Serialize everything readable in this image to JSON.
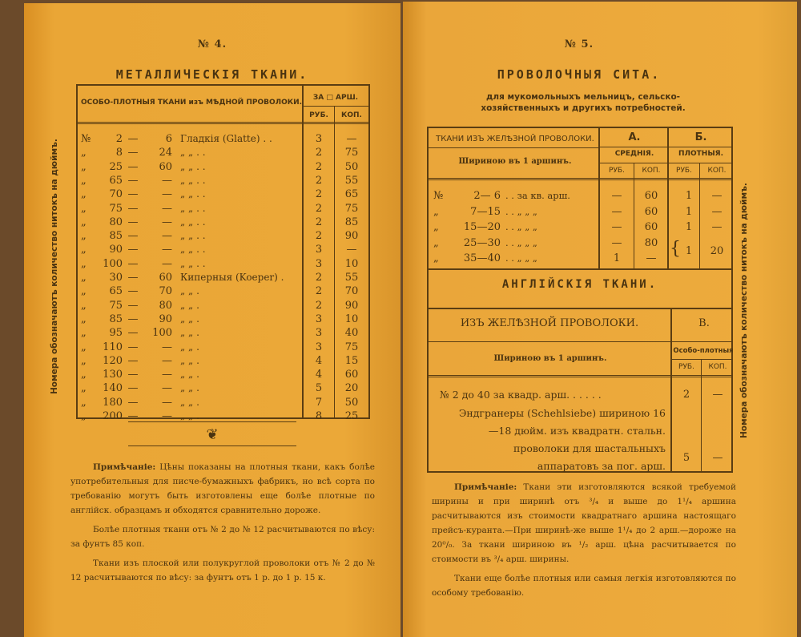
{
  "left_page": {
    "number": "№ 4.",
    "title": "МЕТАЛЛИЧЕСКІЯ ТКАНИ.",
    "side_text": "Номера обозначаютъ количество нитокъ на дюймъ.",
    "table": {
      "header": "ОСОБО-ПЛОТНЫЯ ТКАНИ изъ МѢДНОЙ ПРОВОЛОКИ.",
      "price_header": "ЗА □ АРШ.",
      "col_rub": "РУБ.",
      "col_kop": "КОП.",
      "rows": [
        {
          "mark": "№",
          "from": "2",
          "to": "6",
          "desc": "Гладкія (Glatte) . .",
          "rub": "3",
          "kop": "—"
        },
        {
          "mark": "„",
          "from": "8",
          "to": "24",
          "desc": "„        „     . .",
          "rub": "2",
          "kop": "75"
        },
        {
          "mark": "„",
          "from": "25",
          "to": "60",
          "desc": "„        „     . .",
          "rub": "2",
          "kop": "50"
        },
        {
          "mark": "„",
          "from": "65",
          "to": "—",
          "desc": "„        „     . .",
          "rub": "2",
          "kop": "55"
        },
        {
          "mark": "„",
          "from": "70",
          "to": "—",
          "desc": "„        „     . .",
          "rub": "2",
          "kop": "65"
        },
        {
          "mark": "„",
          "from": "75",
          "to": "—",
          "desc": "„        „     . .",
          "rub": "2",
          "kop": "75"
        },
        {
          "mark": "„",
          "from": "80",
          "to": "—",
          "desc": "„        „     . .",
          "rub": "2",
          "kop": "85"
        },
        {
          "mark": "„",
          "from": "85",
          "to": "—",
          "desc": "„        „     . .",
          "rub": "2",
          "kop": "90"
        },
        {
          "mark": "„",
          "from": "90",
          "to": "—",
          "desc": "„        „     . .",
          "rub": "3",
          "kop": "—"
        },
        {
          "mark": "„",
          "from": "100",
          "to": "—",
          "desc": "„        „     . .",
          "rub": "3",
          "kop": "10"
        },
        {
          "mark": "„",
          "from": "30",
          "to": "60",
          "desc": "Киперныя (Koeper) .",
          "rub": "2",
          "kop": "55"
        },
        {
          "mark": "„",
          "from": "65",
          "to": "70",
          "desc": "„          „     .",
          "rub": "2",
          "kop": "70"
        },
        {
          "mark": "„",
          "from": "75",
          "to": "80",
          "desc": "„          „     .",
          "rub": "2",
          "kop": "90"
        },
        {
          "mark": "„",
          "from": "85",
          "to": "90",
          "desc": "„          „     .",
          "rub": "3",
          "kop": "10"
        },
        {
          "mark": "„",
          "from": "95",
          "to": "100",
          "desc": "„          „     .",
          "rub": "3",
          "kop": "40"
        },
        {
          "mark": "„",
          "from": "110",
          "to": "—",
          "desc": "„          „     .",
          "rub": "3",
          "kop": "75"
        },
        {
          "mark": "„",
          "from": "120",
          "to": "—",
          "desc": "„          „     .",
          "rub": "4",
          "kop": "15"
        },
        {
          "mark": "„",
          "from": "130",
          "to": "—",
          "desc": "„          „     .",
          "rub": "4",
          "kop": "60"
        },
        {
          "mark": "„",
          "from": "140",
          "to": "—",
          "desc": "„          „     .",
          "rub": "5",
          "kop": "20"
        },
        {
          "mark": "„",
          "from": "180",
          "to": "—",
          "desc": "„          „     .",
          "rub": "7",
          "kop": "50"
        },
        {
          "mark": "„",
          "from": "200",
          "to": "—",
          "desc": "„          „     .",
          "rub": "8",
          "kop": "25"
        }
      ]
    },
    "ornament": "❦",
    "notes": [
      {
        "label": "Примѣчаніе:",
        "text": " Цѣны показаны на плотныя ткани, какъ болѣе употребительныя для писче-бумажныхъ фабрикъ, но всѣ сорта по требованію могутъ быть изготовлены еще болѣе плотные по англійск. образцамъ и обходятся сравнительно дороже."
      },
      {
        "label": "",
        "text": "Болѣе плотныя ткани отъ № 2 до № 12 расчитываются по вѣсу: за фунтъ 85 коп."
      },
      {
        "label": "",
        "text": "Ткани изъ плоской или полукруглой проволоки отъ № 2 до № 12 расчитываются по вѣсу: за фунтъ отъ 1 р. до 1 р. 15 к."
      }
    ]
  },
  "right_page": {
    "number": "№ 5.",
    "title": "ПРОВОЛОЧНЫЯ СИТА.",
    "subtitle": "для мукомольныхъ мельницъ, сельско-хозяйственныхъ и другихъ потребностей.",
    "side_text": "Номера обозначаютъ количество нитокъ на дюймъ.",
    "table1": {
      "header": "ТКАНИ ИЗЪ ЖЕЛѢЗНОЙ ПРОВОЛОКИ.",
      "width_label": "Шириною въ 1 аршинъ.",
      "col_a": "А.",
      "col_a_sub": "СРЕДНІЯ.",
      "col_b": "Б.",
      "col_b_sub": "ПЛОТНЫЯ.",
      "rub": "РУБ.",
      "kop": "КОП.",
      "rows": [
        {
          "mark": "№",
          "range": "2— 6",
          "desc": ". . за кв. арш.",
          "a_rub": "—",
          "a_kop": "60",
          "b_rub": "1",
          "b_kop": "—"
        },
        {
          "mark": "„",
          "range": "7—15",
          "desc": ". .  „   „   „",
          "a_rub": "—",
          "a_kop": "60",
          "b_rub": "1",
          "b_kop": "—"
        },
        {
          "mark": "„",
          "range": "15—20",
          "desc": ". .  „   „   „",
          "a_rub": "—",
          "a_kop": "60",
          "b_rub": "1",
          "b_kop": "—"
        },
        {
          "mark": "„",
          "range": "25—30",
          "desc": ". .  „   „   „",
          "a_rub": "—",
          "a_kop": "80",
          "b_rub": "1",
          "b_kop": "20"
        },
        {
          "mark": "„",
          "range": "35—40",
          "desc": ". .  „   „   „",
          "a_rub": "1",
          "a_kop": "—",
          "b_rub": "",
          "b_kop": ""
        }
      ]
    },
    "table2": {
      "title": "АНГЛІЙСКІЯ ТКАНИ.",
      "header": "ИЗЪ ЖЕЛѢЗНОЙ ПРОВОЛОКИ.",
      "col_v": "В.",
      "width_label": "Шириною въ 1 аршинъ.",
      "col_v_sub": "Особо-плотныя",
      "rub": "РУБ.",
      "kop": "КОП.",
      "line1": "№ 2 до 40 за квадр. арш. . . . . .",
      "line1_rub": "2",
      "line1_kop": "—",
      "line2": "Эндгранеры (Schehlsiebe) шириною 16—18 дюйм. изъ квадратн. стальн. проволоки для шастальныхъ аппаратовъ за пог. арш.",
      "line2_rub": "5",
      "line2_kop": "—"
    },
    "notes": [
      {
        "label": "Примѣчаніе:",
        "text": " Ткани эти изготовляются всякой требуемой ширины и при ширинѣ отъ ³/₄ и выше до 1¹/₄ аршина расчитываются изъ стоимости квадратнаго аршина настоящаго прейсъ-куранта.—При ширинѣ-же выше 1¹/₄ до 2 арш.—дороже на 20⁰/₀. За ткани шириною въ ¹/₂ арш. цѣна расчитывается по стоимости въ ³/₄ арш. ширины."
      },
      {
        "label": "",
        "text": "Ткани еще болѣе плотныя или самыя легкія изготовляются по особому требованію."
      }
    ]
  },
  "colors": {
    "paper": "#eba838",
    "ink": "#4a3310",
    "background": "#6b4a2a"
  }
}
